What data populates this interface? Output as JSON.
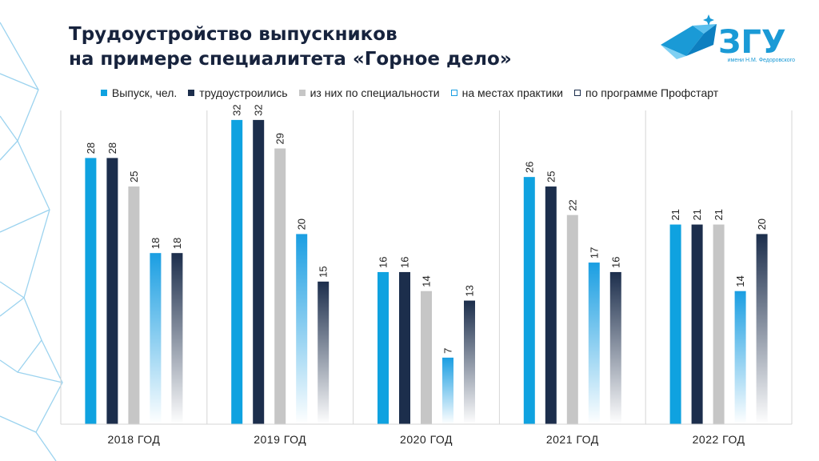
{
  "title_lines": [
    "Трудоустройство выпускников",
    "на примере специалитета «Горное дело»"
  ],
  "logo": {
    "mark": "ЗГУ",
    "subtitle": "имени Н.М. Федоровского",
    "icon": "diamond-logo-icon"
  },
  "colors": {
    "blue": "#0fa2e0",
    "navy": "#1c2e4c",
    "gray": "#c6c6c6",
    "grid": "#d6d6d6",
    "text": "#222222",
    "title": "#17233d"
  },
  "chart_data": {
    "type": "bar",
    "title": "",
    "xlabel": "",
    "ylabel": "",
    "ylim": [
      0,
      33
    ],
    "grid": false,
    "legend_position": "top",
    "categories": [
      "2018 ГОД",
      "2019 ГОД",
      "2020 ГОД",
      "2021 ГОД",
      "2022 ГОД"
    ],
    "series": [
      {
        "name": "Выпуск, чел.",
        "values": [
          28,
          32,
          16,
          26,
          21
        ],
        "style": "solid",
        "color": "#0fa2e0"
      },
      {
        "name": "трудоустроились",
        "values": [
          28,
          32,
          16,
          25,
          21
        ],
        "style": "solid",
        "color": "#1c2e4c"
      },
      {
        "name": "из них по специальности",
        "values": [
          25,
          29,
          14,
          22,
          21
        ],
        "style": "solid",
        "color": "#c6c6c6"
      },
      {
        "name": "на местах практики",
        "values": [
          18,
          20,
          7,
          17,
          14
        ],
        "style": "gradient",
        "color": "#1a9ee2"
      },
      {
        "name": "по программе Профстарт",
        "values": [
          18,
          15,
          13,
          16,
          20
        ],
        "style": "gradient",
        "color": "#1c2e4c"
      }
    ]
  }
}
